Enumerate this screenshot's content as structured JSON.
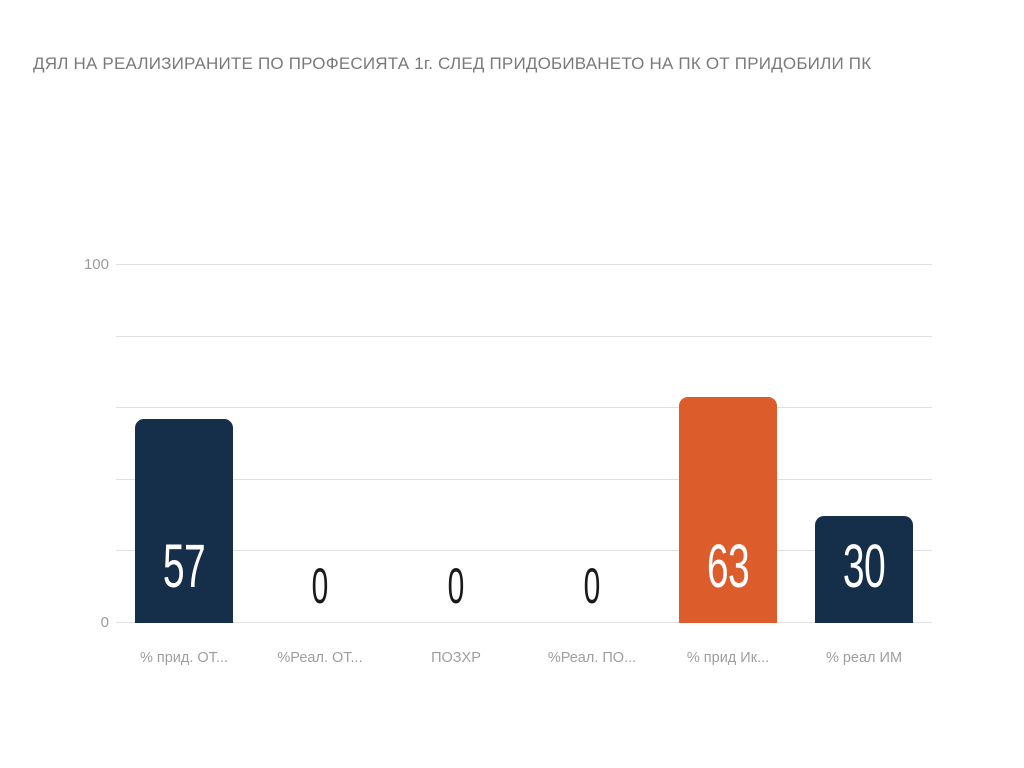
{
  "title": "ДЯЛ НА РЕАЛИЗИРАНИТЕ ПО ПРОФЕСИЯТА 1г. СЛЕД ПРИДОБИВАНЕТО НА ПК ОТ ПРИДОБИЛИ ПК",
  "chart_data": {
    "type": "bar",
    "title": "ДЯЛ НА РЕАЛИЗИРАНИТЕ ПО ПРОФЕСИЯТА 1г. СЛЕД ПРИДОБИВАНЕТО НА ПК ОТ ПРИДОБИЛИ ПК",
    "categories": [
      "% прид. ОТ...",
      "%Реал. ОТ...",
      "ПОЗХР",
      "%Реал. ПО...",
      "% прид Ик...",
      "% реал ИМ"
    ],
    "values": [
      57,
      0,
      0,
      0,
      63,
      30
    ],
    "bar_colors": [
      "#152e4a",
      "#152e4a",
      "#152e4a",
      "#152e4a",
      "#dc5c2c",
      "#152e4a"
    ],
    "xlabel": "",
    "ylabel": "",
    "ylim": [
      0,
      100
    ],
    "yticks": [
      0,
      20,
      40,
      60,
      80,
      100
    ],
    "ytick_labels_shown": [
      0,
      100
    ],
    "grid": true,
    "legend": "none",
    "colors": {
      "background": "#ffffff",
      "gridline_color": "#e0e0e0",
      "axis_label_color": "#9b9b9b",
      "category_label_color": "#9e9e9e",
      "title_color": "#7a7a7a",
      "value_label_on_bar": "#ffffff",
      "value_label_zero": "#1a1a1a",
      "navy_bar": "#152e4a",
      "orange_bar": "#dc5c2c"
    }
  }
}
